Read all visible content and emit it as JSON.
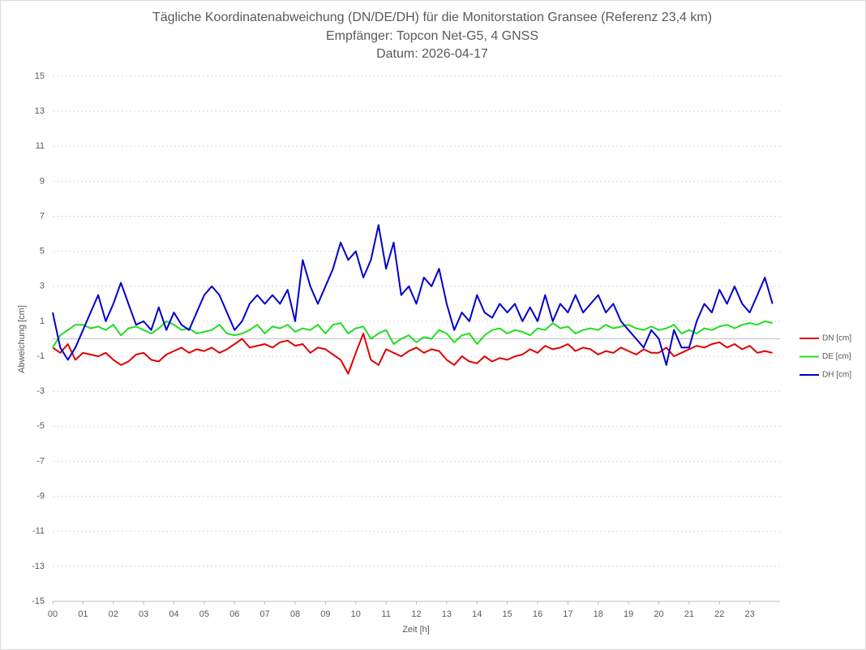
{
  "chart_data": {
    "type": "line",
    "title": "Tägliche Koordinatenabweichung (DN/DE/DH) für die Monitorstation Gransee (Referenz 23,4 km)",
    "subtitles": [
      "Empfänger: Topcon Net-G5, 4 GNSS",
      "Datum: 2026-04-17"
    ],
    "x_label": "Zeit [h]",
    "y_label": "Abweichung [cm]",
    "x": [
      0,
      0.25,
      0.5,
      0.75,
      1,
      1.25,
      1.5,
      1.75,
      2,
      2.25,
      2.5,
      2.75,
      3,
      3.25,
      3.5,
      3.75,
      4,
      4.25,
      4.5,
      4.75,
      5,
      5.25,
      5.5,
      5.75,
      6,
      6.25,
      6.5,
      6.75,
      7,
      7.25,
      7.5,
      7.75,
      8,
      8.25,
      8.5,
      8.75,
      9,
      9.25,
      9.5,
      9.75,
      10,
      10.25,
      10.5,
      10.75,
      11,
      11.25,
      11.5,
      11.75,
      12,
      12.25,
      12.5,
      12.75,
      13,
      13.25,
      13.5,
      13.75,
      14,
      14.25,
      14.5,
      14.75,
      15,
      15.25,
      15.5,
      15.75,
      16,
      16.25,
      16.5,
      16.75,
      17,
      17.25,
      17.5,
      17.75,
      18,
      18.25,
      18.5,
      18.75,
      19,
      19.25,
      19.5,
      19.75,
      20,
      20.25,
      20.5,
      20.75,
      21,
      21.25,
      21.5,
      21.75,
      22,
      22.25,
      22.5,
      22.75,
      23,
      23.25,
      23.5,
      23.75
    ],
    "series": [
      {
        "name": "DN [cm]",
        "color": "#e00000",
        "values": [
          -0.5,
          -0.8,
          -0.3,
          -1.2,
          -0.8,
          -0.9,
          -1.0,
          -0.8,
          -1.2,
          -1.5,
          -1.3,
          -0.9,
          -0.8,
          -1.2,
          -1.3,
          -0.9,
          -0.7,
          -0.5,
          -0.8,
          -0.6,
          -0.7,
          -0.5,
          -0.8,
          -0.6,
          -0.3,
          0.0,
          -0.5,
          -0.4,
          -0.3,
          -0.5,
          -0.2,
          -0.1,
          -0.4,
          -0.3,
          -0.8,
          -0.5,
          -0.6,
          -0.9,
          -1.2,
          -2.0,
          -0.8,
          0.3,
          -1.2,
          -1.5,
          -0.6,
          -0.8,
          -1.0,
          -0.7,
          -0.5,
          -0.8,
          -0.6,
          -0.7,
          -1.2,
          -1.5,
          -1.0,
          -1.3,
          -1.4,
          -1.0,
          -1.3,
          -1.1,
          -1.2,
          -1.0,
          -0.9,
          -0.6,
          -0.8,
          -0.4,
          -0.6,
          -0.5,
          -0.3,
          -0.7,
          -0.5,
          -0.6,
          -0.9,
          -0.7,
          -0.8,
          -0.5,
          -0.7,
          -0.9,
          -0.6,
          -0.8,
          -0.8,
          -0.5,
          -1.0,
          -0.8,
          -0.6,
          -0.4,
          -0.5,
          -0.3,
          -0.2,
          -0.5,
          -0.3,
          -0.6,
          -0.4,
          -0.8,
          -0.7,
          -0.8
        ]
      },
      {
        "name": "DE [cm]",
        "color": "#22dd22",
        "values": [
          -0.5,
          0.2,
          0.5,
          0.8,
          0.8,
          0.6,
          0.7,
          0.5,
          0.8,
          0.2,
          0.6,
          0.7,
          0.5,
          0.3,
          0.6,
          1.0,
          0.8,
          0.5,
          0.6,
          0.3,
          0.4,
          0.5,
          0.8,
          0.3,
          0.2,
          0.3,
          0.5,
          0.8,
          0.3,
          0.7,
          0.6,
          0.8,
          0.4,
          0.6,
          0.5,
          0.8,
          0.3,
          0.8,
          0.9,
          0.3,
          0.6,
          0.7,
          0.0,
          0.3,
          0.5,
          -0.3,
          0.0,
          0.2,
          -0.2,
          0.1,
          0.0,
          0.5,
          0.3,
          -0.2,
          0.2,
          0.3,
          -0.3,
          0.2,
          0.5,
          0.6,
          0.3,
          0.5,
          0.4,
          0.2,
          0.6,
          0.5,
          0.9,
          0.6,
          0.7,
          0.3,
          0.5,
          0.6,
          0.5,
          0.8,
          0.6,
          0.7,
          0.8,
          0.6,
          0.5,
          0.7,
          0.5,
          0.6,
          0.8,
          0.3,
          0.5,
          0.3,
          0.6,
          0.5,
          0.7,
          0.8,
          0.6,
          0.8,
          0.9,
          0.8,
          1.0,
          0.9
        ]
      },
      {
        "name": "DH [cm]",
        "color": "#0000cc",
        "values": [
          1.5,
          -0.5,
          -1.2,
          -0.5,
          0.5,
          1.5,
          2.5,
          1.0,
          2.0,
          3.2,
          2.0,
          0.8,
          1.0,
          0.5,
          1.8,
          0.5,
          1.5,
          0.8,
          0.5,
          1.5,
          2.5,
          3.0,
          2.5,
          1.5,
          0.5,
          1.0,
          2.0,
          2.5,
          2.0,
          2.5,
          2.0,
          2.8,
          1.0,
          4.5,
          3.0,
          2.0,
          3.0,
          4.0,
          5.5,
          4.5,
          5.0,
          3.5,
          4.5,
          6.5,
          4.0,
          5.5,
          2.5,
          3.0,
          2.0,
          3.5,
          3.0,
          4.0,
          2.0,
          0.5,
          1.5,
          1.0,
          2.5,
          1.5,
          1.2,
          2.0,
          1.5,
          2.0,
          1.0,
          1.8,
          1.0,
          2.5,
          1.0,
          2.0,
          1.5,
          2.5,
          1.5,
          2.0,
          2.5,
          1.5,
          2.0,
          1.0,
          0.5,
          0.0,
          -0.5,
          0.5,
          0.0,
          -1.5,
          0.5,
          -0.5,
          -0.5,
          1.0,
          2.0,
          1.5,
          2.8,
          2.0,
          3.0,
          2.0,
          1.5,
          2.5,
          3.5,
          2.0
        ]
      }
    ],
    "xlim": [
      0,
      24
    ],
    "xticks": [
      {
        "value": 0,
        "label": "00"
      },
      {
        "value": 1,
        "label": "01"
      },
      {
        "value": 2,
        "label": "02"
      },
      {
        "value": 3,
        "label": "03"
      },
      {
        "value": 4,
        "label": "04"
      },
      {
        "value": 5,
        "label": "05"
      },
      {
        "value": 6,
        "label": "06"
      },
      {
        "value": 7,
        "label": "07"
      },
      {
        "value": 8,
        "label": "08"
      },
      {
        "value": 9,
        "label": "09"
      },
      {
        "value": 10,
        "label": "10"
      },
      {
        "value": 11,
        "label": "11"
      },
      {
        "value": 12,
        "label": "12"
      },
      {
        "value": 13,
        "label": "13"
      },
      {
        "value": 14,
        "label": "14"
      },
      {
        "value": 15,
        "label": "15"
      },
      {
        "value": 16,
        "label": "16"
      },
      {
        "value": 17,
        "label": "17"
      },
      {
        "value": 18,
        "label": "18"
      },
      {
        "value": 19,
        "label": "19"
      },
      {
        "value": 20,
        "label": "20"
      },
      {
        "value": 21,
        "label": "21"
      },
      {
        "value": 22,
        "label": "22"
      },
      {
        "value": 23,
        "label": "23"
      }
    ],
    "ylim": [
      -15,
      15
    ],
    "yticks": [
      -15,
      -13,
      -11,
      -9,
      -7,
      -5,
      -3,
      -1,
      1,
      3,
      5,
      7,
      9,
      11,
      13,
      15
    ],
    "grid": true,
    "legend": "right"
  }
}
